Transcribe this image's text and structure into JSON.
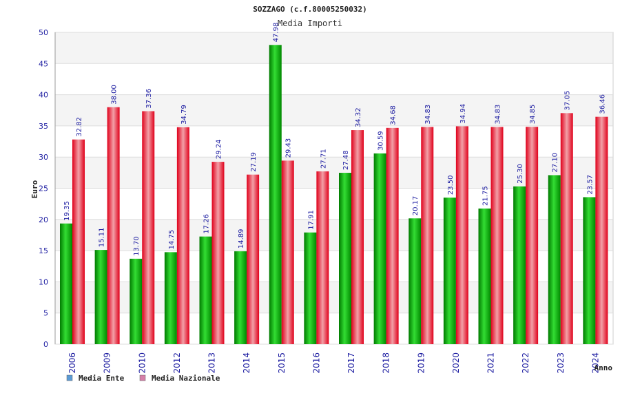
{
  "chart_data": {
    "type": "bar",
    "title": "SOZZAGO (c.f.80005250032)",
    "subtitle": "Media Importi",
    "xlabel": "Anno",
    "ylabel": "Euro",
    "ylim": [
      0,
      50
    ],
    "yticks": [
      0,
      5,
      10,
      15,
      20,
      25,
      30,
      35,
      40,
      45,
      50
    ],
    "grid": true,
    "legend_position": "bottom-left",
    "categories": [
      "2006",
      "2009",
      "2010",
      "2012",
      "2013",
      "2014",
      "2015",
      "2016",
      "2017",
      "2018",
      "2019",
      "2020",
      "2021",
      "2022",
      "2023",
      "2024"
    ],
    "series": [
      {
        "name": "Media Ente",
        "color": "#00aa00",
        "legend_color": "#5b9bd5",
        "values": [
          19.35,
          15.11,
          13.7,
          14.75,
          17.26,
          14.89,
          47.98,
          17.91,
          27.48,
          30.59,
          20.17,
          23.5,
          21.75,
          25.3,
          27.1,
          23.57
        ],
        "labels": [
          "19.35",
          "15.11",
          "13.70",
          "14.75",
          "17.26",
          "14.89",
          "47.98",
          "17.91",
          "27.48",
          "30.59",
          "20.17",
          "23.50",
          "21.75",
          "25.30",
          "27.10",
          "23.57"
        ]
      },
      {
        "name": "Media Nazionale",
        "color": "#e8101e",
        "legend_color": "#d67fa8",
        "values": [
          32.82,
          38.0,
          37.36,
          34.79,
          29.24,
          27.19,
          29.43,
          27.71,
          34.32,
          34.68,
          34.83,
          34.94,
          34.83,
          34.85,
          37.05,
          36.46
        ],
        "labels": [
          "32.82",
          "38.00",
          "37.36",
          "34.79",
          "29.24",
          "27.19",
          "29.43",
          "27.71",
          "34.32",
          "34.68",
          "34.83",
          "34.94",
          "34.83",
          "34.85",
          "37.05",
          "36.46"
        ]
      }
    ]
  }
}
